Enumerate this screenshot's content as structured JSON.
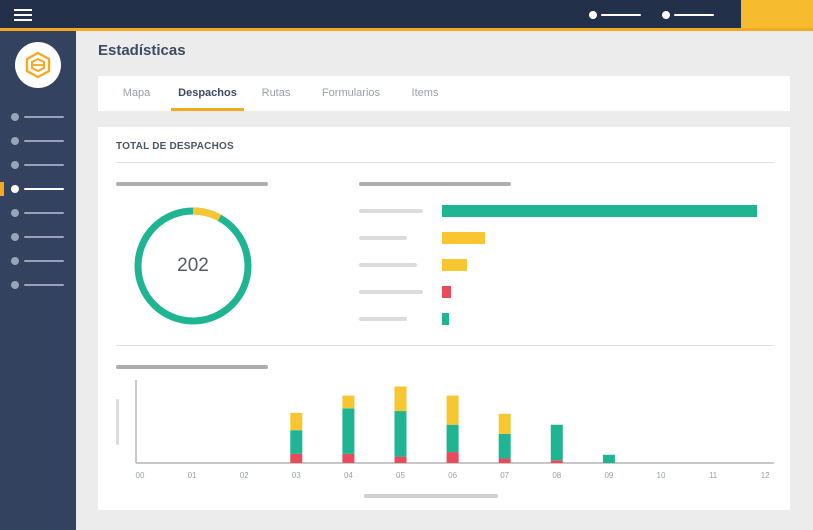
{
  "page": {
    "title": "Estadísticas"
  },
  "colors": {
    "topbar": "#23304a",
    "sidebar": "#33425f",
    "accent": "#f6a823",
    "green": "#1fb592",
    "yellow": "#f8c631",
    "red": "#e84b5c"
  },
  "sidebar": {
    "logo_icon": "bee-hive-logo-icon",
    "items_count_active": 4
  },
  "tabs": [
    {
      "label": "Mapa",
      "active": false
    },
    {
      "label": "Despachos",
      "active": true
    },
    {
      "label": "Rutas",
      "active": false
    },
    {
      "label": "Formularios",
      "active": false
    },
    {
      "label": "Items",
      "active": false
    }
  ],
  "card": {
    "title": "TOTAL DE DESPACHOS"
  },
  "donut": {
    "total": "202",
    "green_fraction": 0.92,
    "yellow_fraction": 0.08
  },
  "chart_data": [
    {
      "type": "bar",
      "orientation": "horizontal",
      "categories": [
        "",
        "",
        "",
        "",
        ""
      ],
      "values": [
        100,
        13.5,
        8,
        3,
        2
      ],
      "colors": [
        "#1fb592",
        "#f8c631",
        "#f8c631",
        "#e84b5c",
        "#1fb592"
      ]
    },
    {
      "type": "bar",
      "stacked": true,
      "categories": [
        "00",
        "01",
        "02",
        "03",
        "04",
        "05",
        "06",
        "07",
        "08",
        "09",
        "10",
        "11",
        "12"
      ],
      "series": [
        {
          "color": "#e84b5c",
          "values": [
            0,
            0,
            0,
            10,
            10,
            7,
            12,
            5,
            3,
            0,
            0,
            0,
            0
          ]
        },
        {
          "color": "#1fb592",
          "values": [
            0,
            0,
            0,
            26,
            50,
            50,
            30,
            27,
            39,
            9,
            0,
            0,
            0
          ]
        },
        {
          "color": "#f8c631",
          "values": [
            0,
            0,
            0,
            19,
            14,
            27,
            32,
            22,
            0,
            0,
            0,
            0,
            0
          ]
        }
      ],
      "ylim": [
        0,
        90
      ]
    }
  ]
}
